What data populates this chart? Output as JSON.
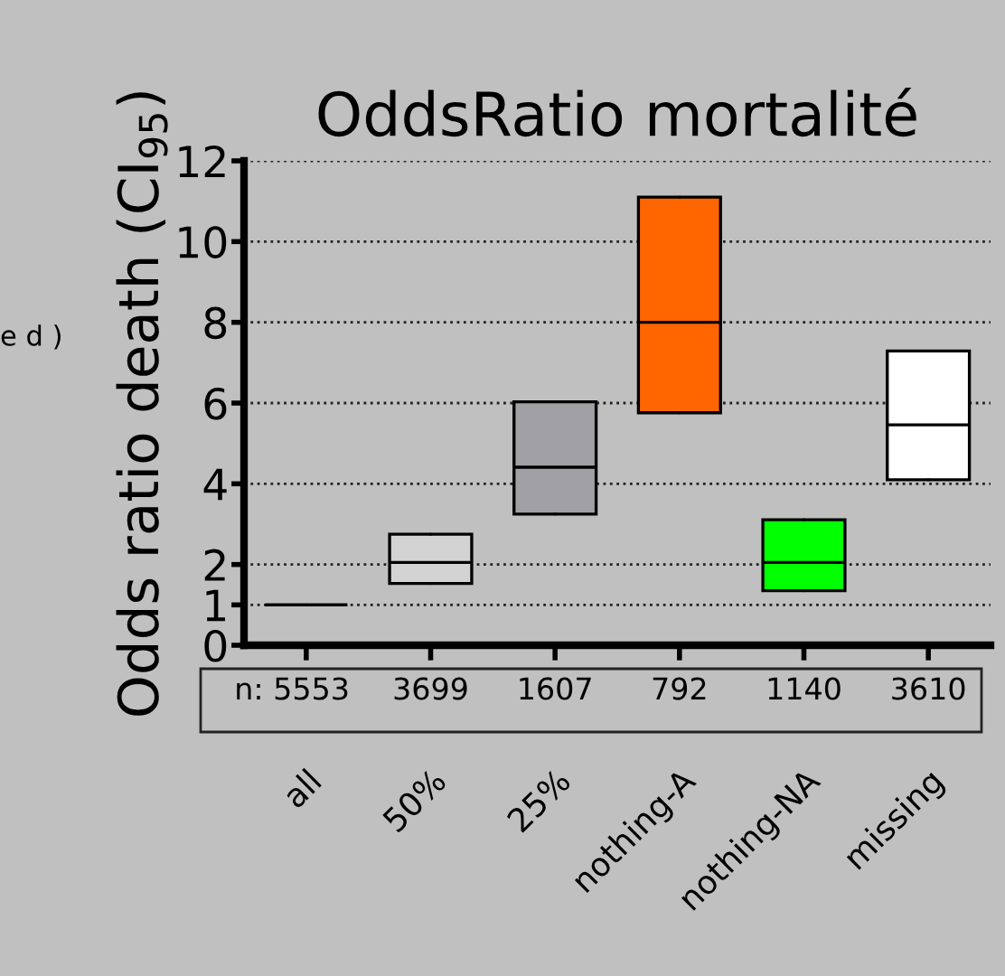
{
  "chart_data": {
    "type": "box",
    "title": "OddsRatio mortalité",
    "ylabel": "Odds ratio death (CI$_{95}$)",
    "categories": [
      "all",
      "50%",
      "25%",
      "nothing-A",
      "nothing-NA",
      "missing"
    ],
    "boxes": [
      {
        "low": 1,
        "q1": 1,
        "median": 1,
        "q3": 1,
        "high": 1
      },
      {
        "low": 1.53,
        "q1": 1.53,
        "median": 2.05,
        "q3": 2.75,
        "high": 2.75
      },
      {
        "low": 3.25,
        "q1": 3.25,
        "median": 4.41,
        "q3": 6.03,
        "high": 6.03
      },
      {
        "low": 5.76,
        "q1": 5.76,
        "median": 8.0,
        "q3": 11.1,
        "high": 11.1
      },
      {
        "low": 1.35,
        "q1": 1.35,
        "median": 2.05,
        "q3": 3.11,
        "high": 3.11
      },
      {
        "low": 4.1,
        "q1": 4.1,
        "median": 5.46,
        "q3": 7.29,
        "high": 7.29
      }
    ],
    "colors": [
      "#000000",
      "#d3d3d3",
      "#a1a0a5",
      "#ff6600",
      "#00ff00",
      "#ffffff"
    ],
    "ylim": [
      0,
      12
    ],
    "yticks": [
      0,
      1,
      2,
      4,
      6,
      8,
      10,
      12
    ],
    "grid": "y",
    "line_style": "dotted",
    "annotations": [
      "e d )",
      "n: 5553",
      "3699",
      "1607",
      "792",
      "1140",
      "3610"
    ]
  }
}
